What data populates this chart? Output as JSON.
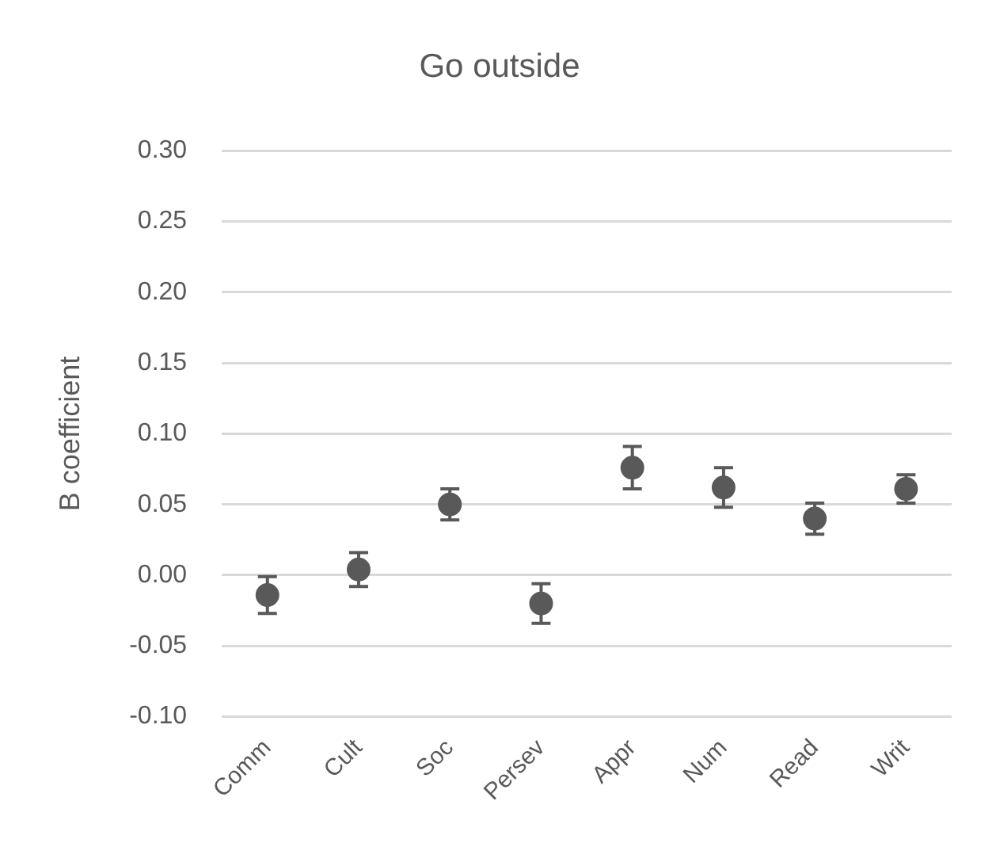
{
  "chart_data": {
    "type": "scatter",
    "title": "Go outside",
    "ylabel": "B coefficient",
    "categories": [
      "Comm",
      "Cult",
      "Soc",
      "Persev",
      "Appr",
      "Num",
      "Read",
      "Writ"
    ],
    "values": [
      -0.014,
      0.004,
      0.05,
      -0.02,
      0.076,
      0.062,
      0.04,
      0.061
    ],
    "errors": [
      0.013,
      0.012,
      0.011,
      0.014,
      0.015,
      0.014,
      0.011,
      0.01
    ],
    "color": "#595959",
    "marker": "circle",
    "ylim": [
      -0.1,
      0.3
    ],
    "yticks": [
      {
        "value": -0.1,
        "label": "-0.10"
      },
      {
        "value": -0.05,
        "label": "-0.05"
      },
      {
        "value": 0,
        "label": "0.00"
      },
      {
        "value": 0.05,
        "label": "0.05"
      },
      {
        "value": 0.1,
        "label": "0.10"
      },
      {
        "value": 0.15,
        "label": "0.15"
      },
      {
        "value": 0.2,
        "label": "0.20"
      },
      {
        "value": 0.25,
        "label": "0.25"
      },
      {
        "value": 0.3,
        "label": "0.30"
      }
    ],
    "grid": "y",
    "legend": false
  }
}
